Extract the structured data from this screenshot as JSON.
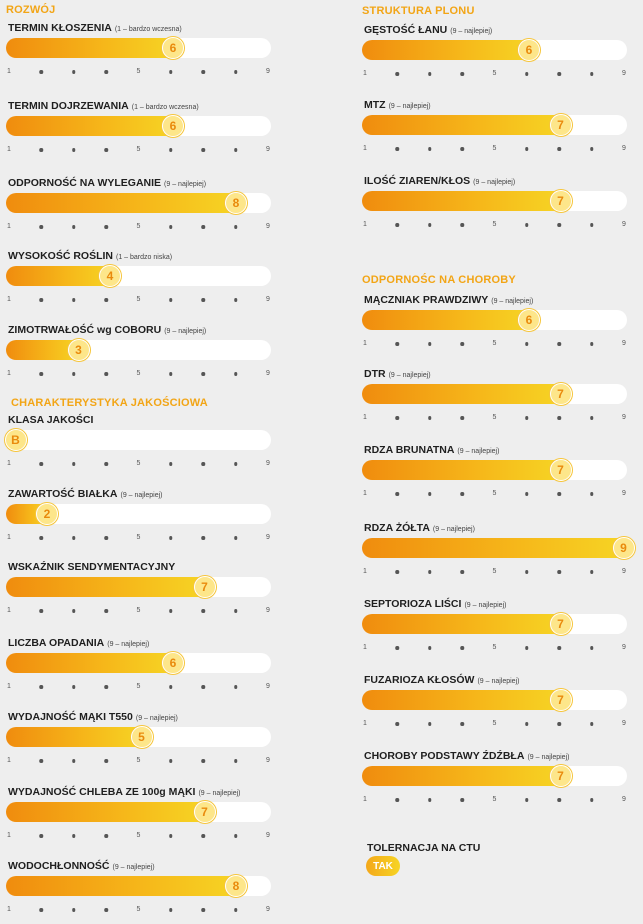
{
  "left": {
    "sections": [
      {
        "title": "ROZWÓJ",
        "top": 0
      },
      {
        "title": "CHARAKTERYSTYKA JAKOŚCIOWA",
        "top": 0
      }
    ],
    "traits": [
      {
        "label": "TERMIN KŁOSZENIA",
        "note": "(1 – bardzo wczesna)",
        "value": 6,
        "display": "6"
      },
      {
        "label": "TERMIN DOJRZEWANIA",
        "note": "(1 – bardzo wczesna)",
        "value": 6,
        "display": "6"
      },
      {
        "label": "ODPORNOŚĆ NA WYLEGANIE",
        "note": "(9 – najlepiej)",
        "value": 8,
        "display": "8"
      },
      {
        "label": "WYSOKOŚĆ ROŚLIN",
        "note": "(1 – bardzo niska)",
        "value": 4,
        "display": "4"
      },
      {
        "label": "ZIMOTRWAŁOŚĆ wg COBORU",
        "note": "(9 – najlepiej)",
        "value": 3,
        "display": "3"
      },
      {
        "label": "KLASA JAKOŚCI",
        "note": "",
        "value": 1,
        "display": "B"
      },
      {
        "label": "ZAWARTOŚĆ BIAŁKA",
        "note": "(9 – najlepiej)",
        "value": 2,
        "display": "2"
      },
      {
        "label": "WSKAŹNIK SENDYMENTACYJNY",
        "note": "",
        "value": 7,
        "display": "7"
      },
      {
        "label": "LICZBA OPADANIA",
        "note": "(9 – najlepiej)",
        "value": 6,
        "display": "6"
      },
      {
        "label": "WYDAJNOŚĆ MĄKI T550",
        "note": "(9 – najlepiej)",
        "value": 5,
        "display": "5"
      },
      {
        "label": "WYDAJNOŚĆ CHLEBA ZE 100g MĄKI",
        "note": "(9 – najlepiej)",
        "value": 7,
        "display": "7"
      },
      {
        "label": "WODOCHŁONNOŚĆ",
        "note": "(9 – najlepiej)",
        "value": 8,
        "display": "8"
      }
    ]
  },
  "right": {
    "sections": [
      {
        "title": "STRUKTURA PLONU"
      },
      {
        "title": "ODPORNOŚC NA CHOROBY"
      }
    ],
    "traits": [
      {
        "label": "GĘSTOŚĆ ŁANU",
        "note": "(9 – najlepiej)",
        "value": 6,
        "display": "6"
      },
      {
        "label": "MTZ",
        "note": "(9 – najlepiej)",
        "value": 7,
        "display": "7"
      },
      {
        "label": "ILOŚĆ ZIAREN/KŁOS",
        "note": "(9 – najlepiej)",
        "value": 7,
        "display": "7"
      },
      {
        "label": "MĄCZNIAK PRAWDZIWY",
        "note": "(9 – najlepiej)",
        "value": 6,
        "display": "6"
      },
      {
        "label": "DTR",
        "note": "(9 – najlepiej)",
        "value": 7,
        "display": "7"
      },
      {
        "label": "RDZA BRUNATNA",
        "note": "(9 – najlepiej)",
        "value": 7,
        "display": "7"
      },
      {
        "label": "RDZA ŻÓŁTA",
        "note": "(9 – najlepiej)",
        "value": 9,
        "display": "9"
      },
      {
        "label": "SEPTORIOZA LIŚCI",
        "note": "(9 – najlepiej)",
        "value": 7,
        "display": "7"
      },
      {
        "label": "FUZARIOZA KŁOSÓW",
        "note": "(9 – najlepiej)",
        "value": 7,
        "display": "7"
      },
      {
        "label": "CHOROBY PODSTAWY ŹDŹBŁA",
        "note": "(9 – najlepiej)",
        "value": 7,
        "display": "7"
      }
    ]
  },
  "ctu": {
    "title": "TOLERNACJA NA CTU",
    "value": "TAK"
  },
  "scale": {
    "min": "1",
    "mid": "5",
    "max": "9"
  },
  "colors": {
    "accent": "#f2a516",
    "fill_start": "#f08c0e",
    "fill_end": "#f6d424"
  }
}
